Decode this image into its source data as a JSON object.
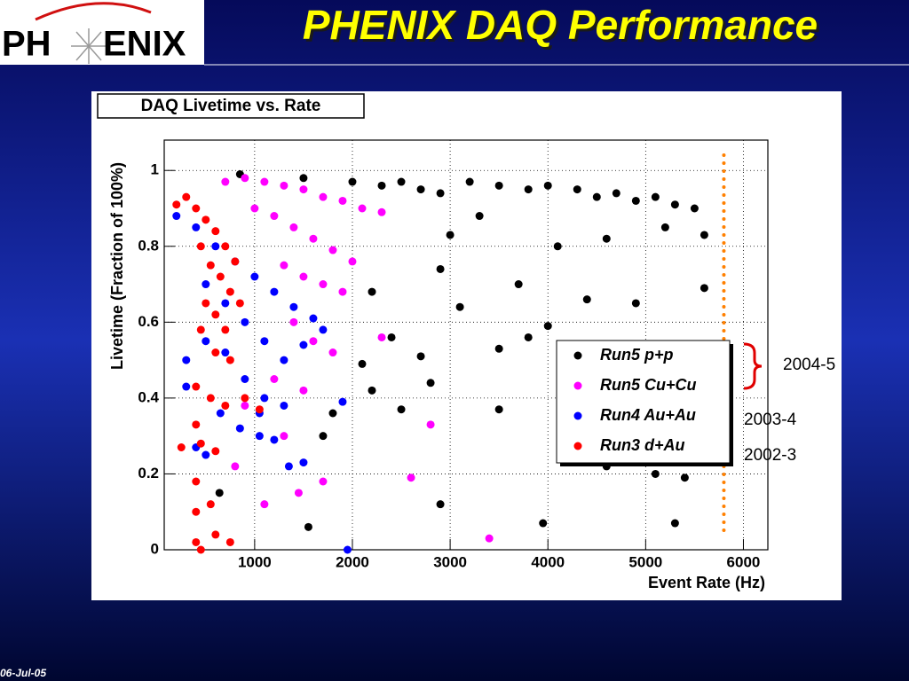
{
  "slide": {
    "title": "PHENIX DAQ Performance",
    "logo": {
      "left": "PH",
      "right": "ENIX"
    },
    "footer": "06-Jul-05"
  },
  "chart_data": {
    "type": "scatter",
    "title": "DAQ Livetime vs. Rate",
    "x_label": "Event Rate (Hz)",
    "y_label": "Livetime (Fraction of 100%)",
    "xlim": [
      75,
      6250
    ],
    "ylim": [
      0,
      1.08
    ],
    "xticks": [
      1000,
      2000,
      3000,
      4000,
      5000,
      6000
    ],
    "yticks": [
      0,
      0.2,
      0.4,
      0.6,
      0.8,
      1
    ],
    "grid": true,
    "legend": "lower right",
    "reference_line": {
      "x": 5800,
      "color": "#ff8000"
    },
    "annotations": [
      "2004-5",
      "2003-4",
      "2002-3"
    ],
    "series": [
      {
        "name": "Run5 p+p",
        "color": "#000000",
        "x": [
          2000,
          2300,
          2500,
          2700,
          2900,
          3200,
          3500,
          3800,
          4000,
          4300,
          4500,
          4700,
          4900,
          5100,
          5300,
          5500,
          5600,
          3000,
          3300,
          4100,
          4600,
          5200,
          2200,
          2900,
          3100,
          3700,
          4400,
          4900,
          5600,
          2100,
          2400,
          2700,
          3500,
          3800,
          4000,
          2200,
          2500,
          3500,
          2800,
          4600,
          5100,
          5400,
          2900,
          3950,
          5300,
          1550,
          1700,
          1800,
          640,
          850,
          1500
        ],
        "values": [
          0.97,
          0.96,
          0.97,
          0.95,
          0.94,
          0.97,
          0.96,
          0.95,
          0.96,
          0.95,
          0.93,
          0.94,
          0.92,
          0.93,
          0.91,
          0.9,
          0.83,
          0.83,
          0.88,
          0.8,
          0.82,
          0.85,
          0.68,
          0.74,
          0.64,
          0.7,
          0.66,
          0.65,
          0.69,
          0.49,
          0.56,
          0.51,
          0.53,
          0.56,
          0.59,
          0.42,
          0.37,
          0.37,
          0.44,
          0.22,
          0.2,
          0.19,
          0.12,
          0.07,
          0.07,
          0.06,
          0.3,
          0.36,
          0.15,
          0.99,
          0.98
        ]
      },
      {
        "name": "Run5 Cu+Cu",
        "color": "#ff00ff",
        "x": [
          700,
          900,
          1100,
          1300,
          1500,
          1700,
          1900,
          2100,
          2300,
          1000,
          1200,
          1400,
          1600,
          1800,
          2000,
          1300,
          1500,
          1700,
          1900,
          1400,
          1600,
          1800,
          2300,
          1200,
          1500,
          2800,
          1700,
          2600,
          3400,
          1100,
          1450,
          900,
          1300,
          800
        ],
        "values": [
          0.97,
          0.98,
          0.97,
          0.96,
          0.95,
          0.93,
          0.92,
          0.9,
          0.89,
          0.9,
          0.88,
          0.85,
          0.82,
          0.79,
          0.76,
          0.75,
          0.72,
          0.7,
          0.68,
          0.6,
          0.55,
          0.52,
          0.56,
          0.45,
          0.42,
          0.33,
          0.18,
          0.19,
          0.03,
          0.12,
          0.15,
          0.38,
          0.3,
          0.22
        ]
      },
      {
        "name": "Run4 Au+Au",
        "color": "#0000ff",
        "x": [
          200,
          400,
          600,
          800,
          1000,
          1200,
          1400,
          1600,
          1700,
          500,
          700,
          900,
          1100,
          1300,
          1500,
          300,
          500,
          700,
          900,
          1100,
          1300,
          300,
          650,
          850,
          1050,
          1200,
          1350,
          1500,
          1900,
          1950,
          400,
          500,
          1050
        ],
        "values": [
          0.88,
          0.85,
          0.8,
          0.76,
          0.72,
          0.68,
          0.64,
          0.61,
          0.58,
          0.7,
          0.65,
          0.6,
          0.55,
          0.5,
          0.54,
          0.5,
          0.55,
          0.52,
          0.45,
          0.4,
          0.38,
          0.43,
          0.36,
          0.32,
          0.36,
          0.29,
          0.22,
          0.23,
          0.39,
          0,
          0.27,
          0.25,
          0.3
        ]
      },
      {
        "name": "Run3 d+Au",
        "color": "#ff0000",
        "x": [
          200,
          300,
          400,
          500,
          600,
          700,
          800,
          450,
          550,
          650,
          750,
          850,
          500,
          600,
          700,
          450,
          600,
          750,
          400,
          550,
          700,
          900,
          1050,
          400,
          450,
          600,
          250,
          400,
          550,
          400,
          400,
          600,
          750,
          450
        ],
        "values": [
          0.91,
          0.93,
          0.9,
          0.87,
          0.84,
          0.8,
          0.76,
          0.8,
          0.75,
          0.72,
          0.68,
          0.65,
          0.65,
          0.62,
          0.58,
          0.58,
          0.52,
          0.5,
          0.43,
          0.4,
          0.38,
          0.4,
          0.37,
          0.33,
          0.28,
          0.26,
          0.27,
          0.18,
          0.12,
          0.1,
          0.02,
          0.04,
          0.02,
          0
        ]
      }
    ]
  }
}
